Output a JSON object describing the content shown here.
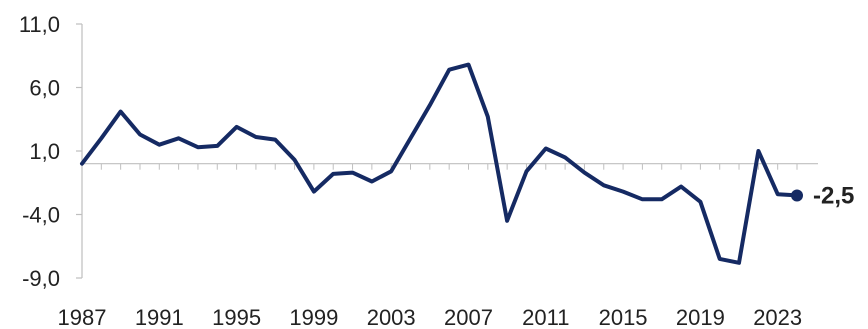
{
  "chart_data": {
    "type": "line",
    "title": "",
    "xlabel": "",
    "ylabel": "",
    "x": [
      1987,
      1988,
      1989,
      1990,
      1991,
      1992,
      1993,
      1994,
      1995,
      1996,
      1997,
      1998,
      1999,
      2000,
      2001,
      2002,
      2003,
      2004,
      2005,
      2006,
      2007,
      2008,
      2009,
      2010,
      2011,
      2012,
      2013,
      2014,
      2015,
      2016,
      2017,
      2018,
      2019,
      2020,
      2021,
      2022,
      2023,
      2024
    ],
    "series": [
      {
        "values": [
          0.0,
          2.0,
          4.1,
          2.3,
          1.5,
          2.0,
          1.3,
          1.4,
          2.9,
          2.1,
          1.9,
          0.3,
          -2.2,
          -0.8,
          -0.7,
          -1.4,
          -0.6,
          2.0,
          4.6,
          7.4,
          7.8,
          3.7,
          -4.5,
          -0.6,
          1.2,
          0.5,
          -0.7,
          -1.7,
          -2.2,
          -2.8,
          -2.8,
          -1.8,
          -3.0,
          -7.5,
          -7.8,
          1.0,
          -2.4,
          -2.5
        ],
        "color": "#152a63"
      }
    ],
    "yticks": [
      "11,0",
      "6,0",
      "1,0",
      "-4,0",
      "-9,0"
    ],
    "ytick_values": [
      11,
      6,
      1,
      -4,
      -9
    ],
    "xticks": [
      "1987",
      "1991",
      "1995",
      "1999",
      "2003",
      "2007",
      "2011",
      "2015",
      "2019",
      "2023"
    ],
    "ylim": [
      -9,
      11
    ],
    "xlim": [
      1987,
      2024
    ],
    "end_label": "-2,5",
    "zero_line": true,
    "grid": false,
    "legend": "none"
  }
}
